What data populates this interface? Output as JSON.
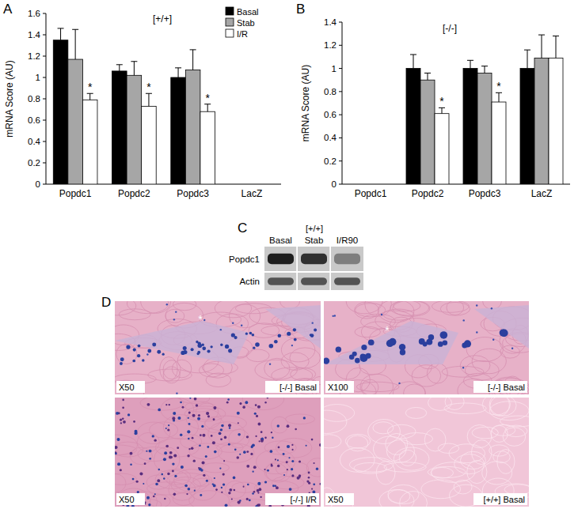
{
  "chart_data": [
    {
      "type": "bar",
      "panel": "A",
      "title": "[+/+]",
      "y_label": "mRNA Score (AU)",
      "categories": [
        "Popdc1",
        "Popdc2",
        "Popdc3",
        "LacZ"
      ],
      "ylim": [
        0,
        1.6
      ],
      "yticks": [
        0,
        0.2,
        0.4,
        0.6,
        0.8,
        1,
        1.2,
        1.4,
        1.6
      ],
      "legend": "top-right",
      "series": [
        {
          "name": "Basal",
          "color": "#000000",
          "values": [
            1.35,
            1.06,
            1.0,
            null
          ],
          "errors": [
            0.11,
            0.06,
            0.09,
            null
          ]
        },
        {
          "name": "Stab",
          "color": "#a6a6a6",
          "values": [
            1.17,
            1.02,
            1.07,
            null
          ],
          "errors": [
            0.28,
            0.13,
            0.19,
            null
          ]
        },
        {
          "name": "I/R",
          "color": "#ffffff",
          "values": [
            0.79,
            0.73,
            0.68,
            null
          ],
          "errors": [
            0.06,
            0.12,
            0.07,
            null
          ]
        }
      ],
      "annotations": [
        {
          "text": "*",
          "category": "Popdc1",
          "series": "I/R"
        },
        {
          "text": "*",
          "category": "Popdc2",
          "series": "I/R"
        },
        {
          "text": "*",
          "category": "Popdc3",
          "series": "I/R"
        }
      ]
    },
    {
      "type": "bar",
      "panel": "B",
      "title": "[-/-]",
      "y_label": "mRNA Score (AU)",
      "categories": [
        "Popdc1",
        "Popdc2",
        "Popdc3",
        "LacZ"
      ],
      "ylim": [
        0,
        1.4
      ],
      "yticks": [
        0,
        0.2,
        0.4,
        0.6,
        0.8,
        1,
        1.2,
        1.4
      ],
      "series": [
        {
          "name": "Basal",
          "color": "#000000",
          "values": [
            null,
            1.0,
            1.0,
            1.0
          ],
          "errors": [
            null,
            0.12,
            0.07,
            0.16
          ]
        },
        {
          "name": "Stab",
          "color": "#a6a6a6",
          "values": [
            null,
            0.9,
            0.96,
            1.09
          ],
          "errors": [
            null,
            0.06,
            0.06,
            0.2
          ]
        },
        {
          "name": "I/R",
          "color": "#ffffff",
          "values": [
            null,
            0.61,
            0.71,
            1.09
          ],
          "errors": [
            null,
            0.05,
            0.08,
            0.19
          ]
        }
      ],
      "annotations": [
        {
          "text": "*",
          "category": "Popdc2",
          "series": "I/R"
        },
        {
          "text": "*",
          "category": "Popdc3",
          "series": "I/R"
        }
      ]
    }
  ],
  "blot": {
    "panel": "C",
    "title": "[+/+]",
    "columns": [
      "Basal",
      "Stab",
      "I/R90"
    ],
    "rows": [
      {
        "label": "Popdc1",
        "intensity": [
          1,
          0.9,
          0.45
        ]
      },
      {
        "label": "Actin",
        "intensity": [
          0.7,
          0.7,
          0.7
        ]
      }
    ]
  },
  "histology": {
    "panel": "D",
    "images": [
      {
        "magnification": "X50",
        "condition": "[-/-] Basal",
        "marker": "*"
      },
      {
        "magnification": "X100",
        "condition": "[-/-] Basal",
        "marker": "*"
      },
      {
        "magnification": "X50",
        "condition": "[-/-] I/R"
      },
      {
        "magnification": "X50",
        "condition": "[+/+] Basal"
      }
    ]
  }
}
